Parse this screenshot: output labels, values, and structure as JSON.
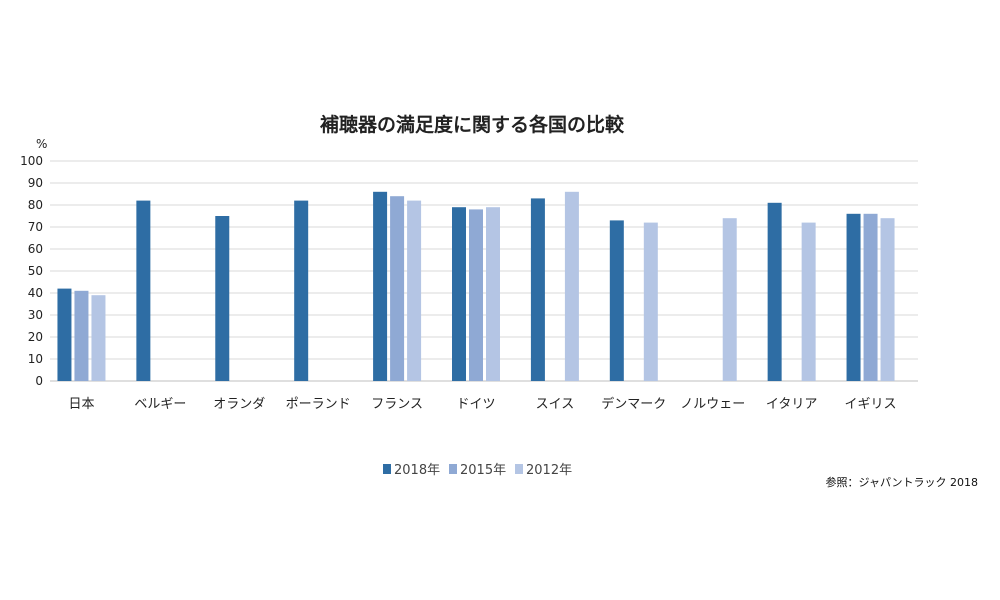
{
  "chart_data": {
    "type": "bar",
    "title": "補聴器の満足度に関する各国の比較",
    "ylabel": "%",
    "xlabel": "",
    "ylim": [
      0,
      100
    ],
    "yticks": [
      0,
      10,
      20,
      30,
      40,
      50,
      60,
      70,
      80,
      90,
      100
    ],
    "grid": true,
    "legend_position": "bottom",
    "categories": [
      "日本",
      "ベルギー",
      "オランダ",
      "ポーランド",
      "フランス",
      "ドイツ",
      "スイス",
      "デンマーク",
      "ノルウェー",
      "イタリア",
      "イギリス"
    ],
    "series": [
      {
        "name": "2018年",
        "color": "#2e6da4",
        "values": [
          42,
          82,
          75,
          82,
          86,
          79,
          83,
          73,
          null,
          81,
          76
        ]
      },
      {
        "name": "2015年",
        "color": "#8fa9d4",
        "values": [
          41,
          null,
          null,
          null,
          84,
          78,
          null,
          null,
          null,
          null,
          76
        ]
      },
      {
        "name": "2012年",
        "color": "#b4c5e4",
        "values": [
          39,
          null,
          null,
          null,
          82,
          79,
          86,
          72,
          74,
          72,
          74
        ]
      }
    ],
    "source": "参照：ジャパントラック 2018"
  }
}
